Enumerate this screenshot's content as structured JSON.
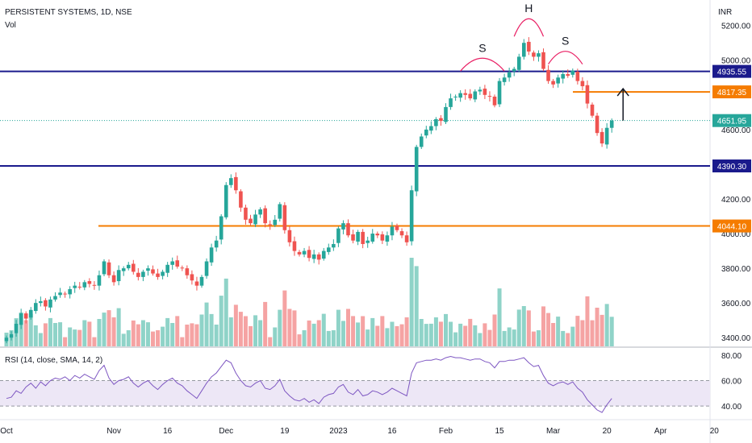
{
  "header": {
    "symbol_line": "PERSISTENT SYSTEMS, 1D, NSE",
    "volume_label": "Vol",
    "currency": "INR"
  },
  "rsi_panel": {
    "label": "RSI (14, close, SMA, 14, 2)"
  },
  "colors": {
    "up": "#26a69a",
    "down": "#ef5350",
    "volume_up": "#8fd3c8",
    "volume_down": "#f5a3a3",
    "navy_level": "#1a1a8c",
    "orange_level": "#f57c00",
    "last_price": "#26a69a",
    "rsi_line": "#7e57c2",
    "rsi_band": "#ede7f6"
  },
  "chart_data": {
    "type": "candlestick",
    "title": "PERSISTENT SYSTEMS, 1D, NSE",
    "x_ticks": [
      "Oct",
      "Nov",
      "16",
      "Dec",
      "19",
      "2023",
      "16",
      "Feb",
      "15",
      "Mar",
      "20",
      "Apr",
      "20"
    ],
    "price_axis": {
      "ticks": [
        5200,
        5000,
        4600,
        4200,
        4000,
        3800,
        3600,
        3400
      ],
      "range": [
        3350,
        5310
      ]
    },
    "price_levels": [
      {
        "value": 4935.55,
        "label": "4935.55",
        "color": "navy"
      },
      {
        "value": 4817.35,
        "label": "4817.35",
        "color": "orange"
      },
      {
        "value": 4651.95,
        "label": "4651.95",
        "color": "last"
      },
      {
        "value": 4390.3,
        "label": "4390.30",
        "color": "navy"
      },
      {
        "value": 4044.1,
        "label": "4044.10",
        "color": "orange"
      }
    ],
    "pattern_labels": [
      "S",
      "H",
      "S"
    ],
    "closes": [
      3400,
      3420,
      3480,
      3540,
      3510,
      3560,
      3600,
      3610,
      3580,
      3620,
      3640,
      3660,
      3650,
      3680,
      3700,
      3690,
      3720,
      3710,
      3700,
      3760,
      3840,
      3760,
      3720,
      3790,
      3800,
      3820,
      3780,
      3750,
      3780,
      3800,
      3770,
      3750,
      3780,
      3820,
      3840,
      3810,
      3800,
      3760,
      3730,
      3700,
      3750,
      3840,
      3920,
      3960,
      4100,
      4280,
      4320,
      4250,
      4150,
      4080,
      4060,
      4110,
      4140,
      4060,
      4050,
      4080,
      4170,
      4020,
      3950,
      3900,
      3880,
      3900,
      3860,
      3880,
      3850,
      3900,
      3920,
      3940,
      4030,
      4060,
      3990,
      3960,
      4010,
      3940,
      3960,
      4000,
      3990,
      3960,
      3990,
      4040,
      4020,
      3990,
      3950,
      4250,
      4500,
      4560,
      4600,
      4620,
      4660,
      4650,
      4730,
      4780,
      4790,
      4810,
      4800,
      4780,
      4820,
      4830,
      4800,
      4790,
      4740,
      4880,
      4900,
      4930,
      4950,
      5020,
      5100,
      5050,
      5020,
      5040,
      4950,
      4880,
      4860,
      4900,
      4920,
      4910,
      4940,
      4880,
      4850,
      4750,
      4680,
      4580,
      4520,
      4610,
      4651.95
    ],
    "rsi": {
      "ticks": [
        80,
        60,
        40
      ],
      "band": [
        40,
        60
      ],
      "values": [
        46,
        47,
        52,
        50,
        55,
        58,
        54,
        59,
        56,
        60,
        62,
        61,
        63,
        60,
        64,
        62,
        65,
        63,
        61,
        68,
        72,
        62,
        57,
        60,
        61,
        63,
        58,
        55,
        58,
        60,
        56,
        53,
        57,
        60,
        62,
        58,
        56,
        52,
        49,
        46,
        52,
        58,
        63,
        66,
        71,
        76,
        74,
        66,
        60,
        56,
        55,
        58,
        60,
        54,
        53,
        56,
        61,
        52,
        48,
        45,
        44,
        46,
        43,
        45,
        42,
        47,
        49,
        50,
        55,
        57,
        51,
        49,
        53,
        48,
        49,
        52,
        51,
        49,
        51,
        54,
        52,
        50,
        48,
        66,
        74,
        75,
        76,
        76,
        77,
        76,
        78,
        79,
        78,
        78,
        77,
        76,
        77,
        77,
        75,
        74,
        70,
        75,
        75,
        76,
        76,
        77,
        78,
        74,
        71,
        72,
        64,
        58,
        56,
        58,
        59,
        57,
        59,
        54,
        51,
        45,
        41,
        37,
        35,
        41,
        46
      ]
    }
  }
}
